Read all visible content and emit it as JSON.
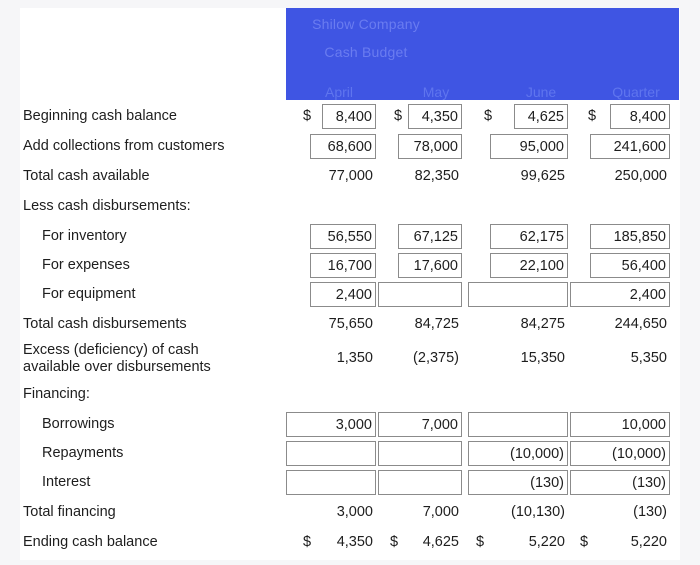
{
  "header": {
    "company": "Shilow Company",
    "subtitle": "Cash Budget",
    "columns": [
      "April",
      "May",
      "June",
      "Quarter"
    ]
  },
  "rows": {
    "beginning": {
      "label": "Beginning cash balance",
      "april": "8,400",
      "may": "4,350",
      "june": "4,625",
      "quarter": "8,400"
    },
    "collections": {
      "label": "Add collections from customers",
      "april": "68,600",
      "may": "78,000",
      "june": "95,000",
      "quarter": "241,600"
    },
    "total_available": {
      "label": "Total cash available",
      "april": "77,000",
      "may": "82,350",
      "june": "99,625",
      "quarter": "250,000"
    },
    "less_disb": {
      "label": "Less cash disbursements:"
    },
    "inventory": {
      "label": "For inventory",
      "april": "56,550",
      "may": "67,125",
      "june": "62,175",
      "quarter": "185,850"
    },
    "expenses": {
      "label": "For expenses",
      "april": "16,700",
      "may": "17,600",
      "june": "22,100",
      "quarter": "56,400"
    },
    "equipment": {
      "label": "For equipment",
      "april": "2,400",
      "may": "",
      "june": "",
      "quarter": "2,400"
    },
    "total_disb": {
      "label": "Total cash disbursements",
      "april": "75,650",
      "may": "84,725",
      "june": "84,275",
      "quarter": "244,650"
    },
    "excess": {
      "label_line1": "Excess (deficiency) of cash",
      "label_line2": "available over disbursements",
      "april": "1,350",
      "may": "(2,375)",
      "june": "15,350",
      "quarter": "5,350"
    },
    "financing": {
      "label": "Financing:"
    },
    "borrowings": {
      "label": "Borrowings",
      "april": "3,000",
      "may": "7,000",
      "june": "",
      "quarter": "10,000"
    },
    "repayments": {
      "label": "Repayments",
      "april": "",
      "may": "",
      "june": "(10,000)",
      "quarter": "(10,000)"
    },
    "interest": {
      "label": "Interest",
      "april": "",
      "may": "",
      "june": "(130)",
      "quarter": "(130)"
    },
    "total_financing": {
      "label": "Total financing",
      "april": "3,000",
      "may": "7,000",
      "june": "(10,130)",
      "quarter": "(130)"
    },
    "ending": {
      "label": "Ending cash balance",
      "april": "4,350",
      "may": "4,625",
      "june": "5,220",
      "quarter": "5,220"
    }
  },
  "currency_symbol": "$"
}
